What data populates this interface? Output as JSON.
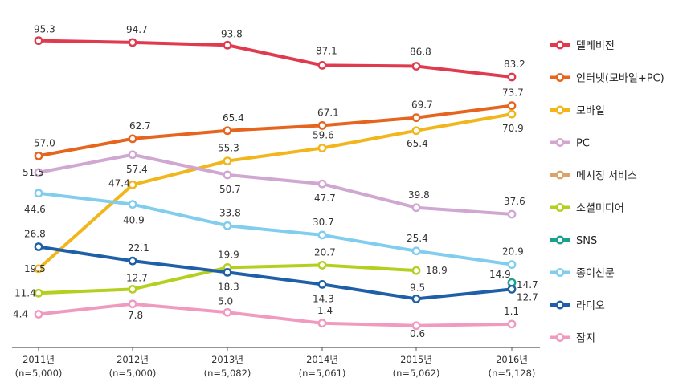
{
  "chart_data": {
    "type": "line",
    "title": "",
    "xlabel": "",
    "ylabel": "",
    "categories": [
      "2011년\n(n=5,000)",
      "2012년\n(n=5,000)",
      "2013년\n(n=5,082)",
      "2014년\n(n=5,061)",
      "2015년\n(n=5,062)",
      "2016년\n(n=5,128)"
    ],
    "ylim": [
      0,
      100
    ],
    "grid": false,
    "legend": "right",
    "series": [
      {
        "name": "텔레비전",
        "color": "#e03a4f",
        "values": [
          95.3,
          94.7,
          93.8,
          87.1,
          86.8,
          83.2
        ]
      },
      {
        "name": "인터넷(모바일+PC)",
        "color": "#e5641e",
        "values": [
          57.0,
          62.7,
          65.4,
          67.1,
          69.7,
          73.7
        ]
      },
      {
        "name": "모바일",
        "color": "#f2b61d",
        "values": [
          19.5,
          47.4,
          55.3,
          59.6,
          65.4,
          70.9
        ]
      },
      {
        "name": "PC",
        "color": "#cfa7d1",
        "values": [
          51.5,
          57.4,
          50.7,
          47.7,
          39.8,
          37.6
        ]
      },
      {
        "name": "메시징 서비스",
        "color": "#d9a36b",
        "values": [
          null,
          null,
          null,
          null,
          null,
          14.7
        ]
      },
      {
        "name": "소셜미디어",
        "color": "#b5cf1f",
        "values": [
          11.4,
          12.7,
          19.9,
          20.7,
          18.9,
          null
        ]
      },
      {
        "name": "SNS",
        "color": "#16a394",
        "values": [
          null,
          null,
          null,
          null,
          null,
          14.9
        ]
      },
      {
        "name": "종이신문",
        "color": "#80cdee",
        "values": [
          44.6,
          40.9,
          33.8,
          30.7,
          25.4,
          20.9
        ]
      },
      {
        "name": "라디오",
        "color": "#1e5fa8",
        "values": [
          26.8,
          22.1,
          18.3,
          14.3,
          9.5,
          12.7
        ]
      },
      {
        "name": "잡지",
        "color": "#f19ac0",
        "values": [
          4.4,
          7.8,
          5.0,
          1.4,
          0.6,
          1.1
        ]
      }
    ],
    "labels": [
      [
        "95.3",
        "94.7",
        "93.8",
        "87.1",
        "86.8",
        "83.2"
      ],
      [
        "57.0",
        "62.7",
        "65.4",
        "67.1",
        "69.7",
        "73.7"
      ],
      [
        "19.5",
        "47.4",
        "55.3",
        "59.6",
        "65.4",
        "70.9"
      ],
      [
        "51.5",
        "57.4",
        "50.7",
        "47.7",
        "39.8",
        "37.6"
      ],
      [
        null,
        null,
        null,
        null,
        null,
        "14.7"
      ],
      [
        "11.4",
        "12.7",
        "19.9",
        "20.7",
        "18.9",
        null
      ],
      [
        null,
        null,
        null,
        null,
        null,
        "14.9"
      ],
      [
        "44.6",
        "40.9",
        "33.8",
        "30.7",
        "25.4",
        "20.9"
      ],
      [
        "26.8",
        "22.1",
        "18.3",
        "14.3",
        "9.5",
        "12.7"
      ],
      [
        "4.4",
        "7.8",
        "5.0",
        "1.4",
        "0.6",
        "1.1"
      ]
    ]
  }
}
